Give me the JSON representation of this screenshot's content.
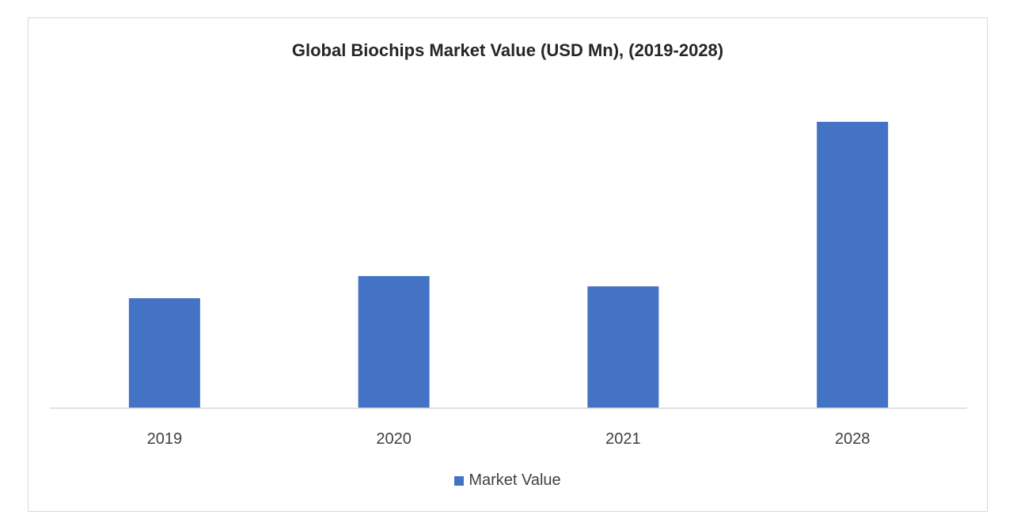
{
  "chart_data": {
    "type": "bar",
    "title": "Global Biochips Market Value (USD Mn), (2019-2028)",
    "xlabel": "",
    "ylabel": "",
    "categories": [
      "2019",
      "2020",
      "2021",
      "2028"
    ],
    "series": [
      {
        "name": "Market Value",
        "color": "#4472c4",
        "values": [
          139,
          167,
          154,
          362
        ]
      }
    ],
    "ylim": [
      0,
      400
    ],
    "grid": false,
    "legend_position": "bottom"
  }
}
